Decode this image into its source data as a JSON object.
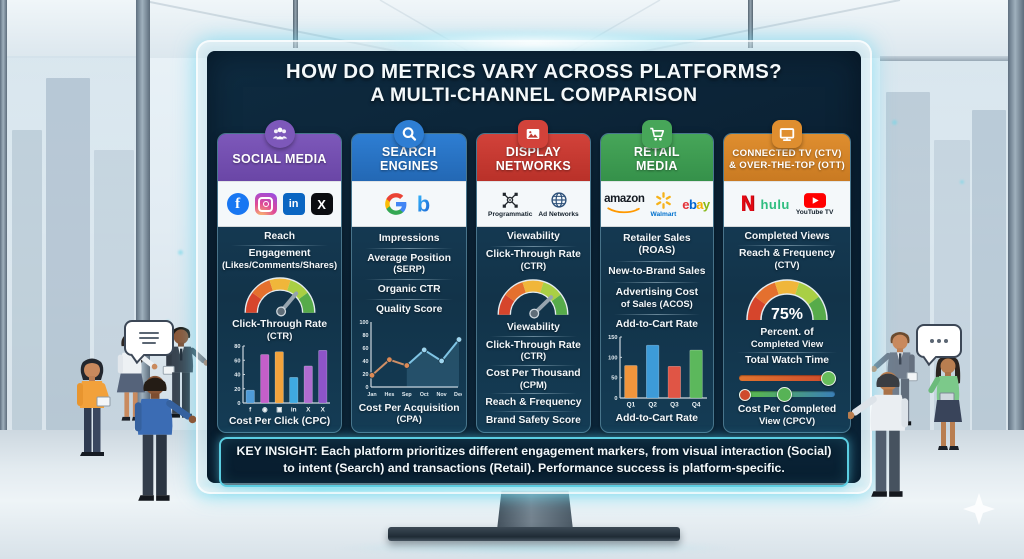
{
  "title": {
    "line1": "HOW DO METRICS VARY ACROSS PLATFORMS?",
    "line2": "A MULTI-CHANNEL COMPARISON"
  },
  "key_insight": {
    "prefix": "KEY INSIGHT:",
    "text": "Each platform prioritizes different engagement markers, from visual interaction (Social) to intent (Search) and transactions (Retail). Performance success is platform-specific."
  },
  "gauge_segments": [
    "#d6452c",
    "#e4702e",
    "#f0b63a",
    "#a9cf44",
    "#57ab4a"
  ],
  "columns": [
    {
      "id": "social-media",
      "header_lines": [
        "SOCIAL MEDIA"
      ],
      "color": "#7d58ba",
      "color2": "#6a46a6",
      "tab_icon": "users-icon",
      "tab_shape": "circle",
      "logos": [
        "facebook",
        "instagram",
        "linkedin",
        "x"
      ],
      "blocks": [
        {
          "type": "item",
          "lines": [
            "Reach"
          ]
        },
        {
          "type": "item",
          "lines": [
            "Engagement",
            "(Likes/Comments/Shares)"
          ]
        },
        {
          "type": "gauge",
          "needle_deg": 40
        },
        {
          "type": "item",
          "lines": [
            "Click-Through Rate",
            "(CTR)"
          ]
        },
        {
          "type": "bar",
          "h": 72,
          "ymax": 80,
          "yticks": [
            0,
            20,
            40,
            60,
            80
          ],
          "categories": [
            "f",
            "◉",
            "▣",
            "in",
            "X",
            "X"
          ],
          "values": [
            18,
            68,
            72,
            36,
            52,
            74
          ],
          "colors": [
            "#4f9bd8",
            "#c45fc9",
            "#f2a33c",
            "#3fa9e0",
            "#b06cd0",
            "#8e54c9"
          ]
        },
        {
          "type": "item",
          "lines": [
            "Cost Per Click (CPC)"
          ]
        }
      ]
    },
    {
      "id": "search-engines",
      "header_lines": [
        "SEARCH",
        "ENGINES"
      ],
      "color": "#2e7ed3",
      "color2": "#2368b4",
      "tab_icon": "search-icon",
      "tab_shape": "circle",
      "logos": [
        "google",
        "bing"
      ],
      "blocks": [
        {
          "type": "item",
          "lines": [
            "Impressions"
          ]
        },
        {
          "type": "item",
          "lines": [
            "Average Position",
            "(SERP)"
          ]
        },
        {
          "type": "item",
          "lines": [
            "Organic CTR"
          ]
        },
        {
          "type": "item",
          "lines": [
            "Quality Score"
          ]
        },
        {
          "type": "line",
          "h": 82,
          "ymax": 100,
          "yticks": [
            0,
            20,
            40,
            60,
            80,
            100
          ],
          "categories": [
            "Jan",
            "Hes",
            "Sep",
            "Oct",
            "Nov",
            "Dec"
          ],
          "values": [
            18,
            42,
            33,
            57,
            40,
            73
          ],
          "early_color": "#cf8f66",
          "late_color": "#7fc4e4",
          "split_index": 3
        },
        {
          "type": "item",
          "lines": [
            "Cost Per Acquisition",
            "(CPA)"
          ]
        }
      ]
    },
    {
      "id": "display-networks",
      "header_lines": [
        "DISPLAY",
        "NETWORKS"
      ],
      "color": "#d2423a",
      "color2": "#b93129",
      "tab_icon": "image-icon",
      "tab_shape": "square",
      "logos": [
        "programmatic",
        "adnetworks"
      ],
      "blocks": [
        {
          "type": "item",
          "lines": [
            "Viewability"
          ]
        },
        {
          "type": "item",
          "lines": [
            "Click-Through Rate",
            "(CTR)"
          ]
        },
        {
          "type": "gauge",
          "needle_deg": 46
        },
        {
          "type": "item",
          "lines": [
            "Viewability"
          ]
        },
        {
          "type": "item",
          "lines": [
            "Click-Through Rate",
            "(CTR)"
          ]
        },
        {
          "type": "item",
          "lines": [
            "Cost Per Thousand",
            "(CPM)"
          ]
        },
        {
          "type": "item",
          "lines": [
            "Reach & Frequency"
          ]
        },
        {
          "type": "item",
          "lines": [
            "Brand Safety Score"
          ]
        }
      ]
    },
    {
      "id": "retail-media",
      "header_lines": [
        "RETAIL",
        "MEDIA"
      ],
      "color": "#47a659",
      "color2": "#35914a",
      "tab_icon": "cart-icon",
      "tab_shape": "square",
      "logos": [
        "amazon",
        "walmart",
        "ebay"
      ],
      "blocks": [
        {
          "type": "item",
          "lines": [
            "Retailer Sales (ROAS)"
          ]
        },
        {
          "type": "item",
          "lines": [
            "New-to-Brand Sales"
          ]
        },
        {
          "type": "item",
          "lines": [
            "Advertising Cost",
            "of Sales (ACOS)"
          ]
        },
        {
          "type": "item",
          "lines": [
            "Add-to-Cart Rate"
          ]
        },
        {
          "type": "bar",
          "h": 76,
          "ymax": 150,
          "yticks": [
            0,
            50,
            100,
            150
          ],
          "categories": [
            "Q1",
            "Q2",
            "Q3",
            "Q4"
          ],
          "values": [
            80,
            130,
            78,
            118
          ],
          "colors": [
            "#f1953c",
            "#3d9bd8",
            "#e05545",
            "#5cb85c"
          ]
        },
        {
          "type": "item",
          "lines": [
            "Add-to-Cart Rate"
          ]
        }
      ]
    },
    {
      "id": "connected-tv",
      "header_lines": [
        "CONNECTED TV (CTV)",
        "& OVER-THE-TOP (OTT)"
      ],
      "color": "#df8e2f",
      "color2": "#c97a22",
      "tab_icon": "tv-icon",
      "tab_shape": "square",
      "logos": [
        "netflix",
        "hulu",
        "youtubetv"
      ],
      "blocks": [
        {
          "type": "item",
          "lines": [
            "Completed Views"
          ]
        },
        {
          "type": "item",
          "lines": [
            "Reach & Frequency",
            "(CTV)"
          ]
        },
        {
          "type": "gauge",
          "center_text": "75%"
        },
        {
          "type": "item",
          "lines": [
            "Percent. of",
            "Completed View"
          ]
        },
        {
          "type": "item",
          "lines": [
            "Total Watch Time"
          ]
        },
        {
          "type": "sliders",
          "slider1": {
            "track_from": "#e0742f",
            "track_to": "#cf4a2c",
            "knob_pos": 92,
            "knob_color": "#67bd5b"
          },
          "slider2": {
            "left_knob_color": "#cf4a2c",
            "track_from": "#57b356",
            "track_to": "#3a7fb8",
            "knob_pos": 46,
            "knob_color": "#57b356"
          }
        },
        {
          "type": "item",
          "lines": [
            "Cost Per Completed",
            "View (CPCV)"
          ]
        }
      ]
    }
  ],
  "logo_text": {
    "facebook": "f",
    "linkedin": "in",
    "x": "X",
    "bing": "b",
    "amazon": "amazon",
    "ebay": "ebay",
    "netflix": "N",
    "hulu": "hulu",
    "programmatic_label": "Programmatic",
    "adnetworks_label": "Ad Networks",
    "walmart_label": "Walmart",
    "youtubetv_label": "YouTube TV"
  }
}
